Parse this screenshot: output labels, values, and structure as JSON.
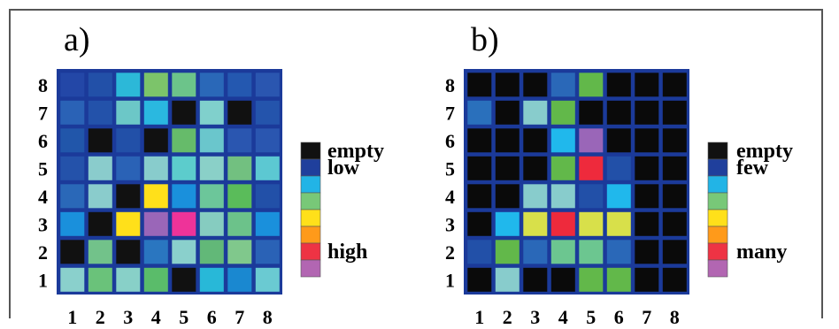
{
  "chart_data": [
    {
      "type": "heatmap",
      "panel_label": "a)",
      "x_ticks": [
        "1",
        "2",
        "3",
        "4",
        "5",
        "6",
        "7",
        "8"
      ],
      "y_ticks": [
        "1",
        "2",
        "3",
        "4",
        "5",
        "6",
        "7",
        "8"
      ],
      "legend": {
        "swatches": [
          "#111111",
          "#1f3f9c",
          "#22b4e6",
          "#78c878",
          "#ffe01a",
          "#ff9a1a",
          "#ee3344",
          "#b266b2"
        ],
        "labels": [
          {
            "text": "empty",
            "index": 1
          },
          {
            "text": "low",
            "index": 2
          },
          {
            "text": "high",
            "index": 7
          }
        ]
      },
      "grid_rows_top_to_bottom": [
        [
          "#2347a7",
          "#2250a8",
          "#2cb8d8",
          "#7cc46a",
          "#6cc48a",
          "#2a68b8",
          "#2458b0",
          "#2a56b0"
        ],
        [
          "#2a62b6",
          "#2352aa",
          "#6cc7c7",
          "#2ab8e0",
          "#111111",
          "#80d0cc",
          "#111111",
          "#2454ac"
        ],
        [
          "#2156aa",
          "#111111",
          "#2250a8",
          "#111111",
          "#66bb6a",
          "#6ac6cc",
          "#2a56b0",
          "#2a56b0"
        ],
        [
          "#2452aa",
          "#8acccc",
          "#2a62b6",
          "#88cccc",
          "#5ccccc",
          "#8ad0c8",
          "#72c080",
          "#5cc8d2"
        ],
        [
          "#2a68b8",
          "#8acccc",
          "#111111",
          "#ffe01a",
          "#1a90dc",
          "#6cc69a",
          "#5abc5a",
          "#2250a8"
        ],
        [
          "#1a90dc",
          "#111111",
          "#ffe01a",
          "#9a66b8",
          "#ee3399",
          "#86ccc0",
          "#6cc28a",
          "#1a90dc"
        ],
        [
          "#111111",
          "#72c28a",
          "#111111",
          "#2a76c0",
          "#8ad0cc",
          "#62b878",
          "#80c88c",
          "#2a62b6"
        ],
        [
          "#8ad0cc",
          "#6ac27a",
          "#88d0c8",
          "#5abc6a",
          "#111111",
          "#28b8d8",
          "#1a88d0",
          "#6acad2"
        ]
      ]
    },
    {
      "type": "heatmap",
      "panel_label": "b)",
      "x_ticks": [
        "1",
        "2",
        "3",
        "4",
        "5",
        "6",
        "7",
        "8"
      ],
      "y_ticks": [
        "1",
        "2",
        "3",
        "4",
        "5",
        "6",
        "7",
        "8"
      ],
      "legend": {
        "swatches": [
          "#111111",
          "#1f3f9c",
          "#22b4e6",
          "#78c878",
          "#ffe01a",
          "#ff9a1a",
          "#ee3344",
          "#b266b2"
        ],
        "labels": [
          {
            "text": "empty",
            "index": 1
          },
          {
            "text": "few",
            "index": 2
          },
          {
            "text": "many",
            "index": 7
          }
        ]
      },
      "grid_rows_top_to_bottom": [
        [
          "#0a0a0a",
          "#0a0a0a",
          "#0a0a0a",
          "#2a68b8",
          "#62b84a",
          "#0a0a0a",
          "#0a0a0a",
          "#0a0a0a"
        ],
        [
          "#2a70bc",
          "#0a0a0a",
          "#88cccc",
          "#62b84a",
          "#0a0a0a",
          "#0a0a0a",
          "#0a0a0a",
          "#0a0a0a"
        ],
        [
          "#0a0a0a",
          "#0a0a0a",
          "#0a0a0a",
          "#20b8ec",
          "#9a66b8",
          "#0a0a0a",
          "#0a0a0a",
          "#0a0a0a"
        ],
        [
          "#0a0a0a",
          "#0a0a0a",
          "#0a0a0a",
          "#62b84a",
          "#ee2a3c",
          "#2250a8",
          "#0a0a0a",
          "#0a0a0a"
        ],
        [
          "#0a0a0a",
          "#0a0a0a",
          "#88cccc",
          "#88cccc",
          "#2250a8",
          "#20b8ec",
          "#0a0a0a",
          "#0a0a0a"
        ],
        [
          "#0a0a0a",
          "#20b8ec",
          "#d8e04a",
          "#ee2a3c",
          "#d8e04a",
          "#d8e04a",
          "#0a0a0a",
          "#0a0a0a"
        ],
        [
          "#2250a8",
          "#62b84a",
          "#2a68b8",
          "#6cc690",
          "#6cc690",
          "#2a68b8",
          "#0a0a0a",
          "#0a0a0a"
        ],
        [
          "#0a0a0a",
          "#88cccc",
          "#0a0a0a",
          "#0a0a0a",
          "#62b84a",
          "#62b84a",
          "#0a0a0a",
          "#0a0a0a"
        ]
      ]
    }
  ]
}
